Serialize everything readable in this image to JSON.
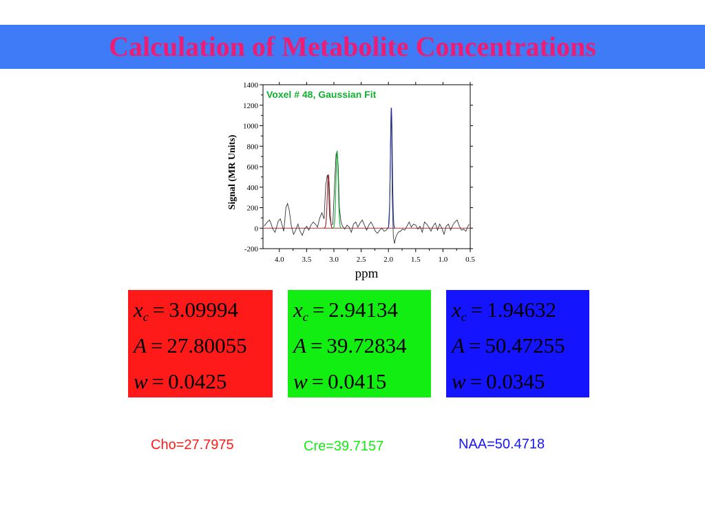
{
  "title": "Calculation of Metabolite Concentrations",
  "colors": {
    "title_bar": "#3f7af7",
    "title_text": "#ee1d74",
    "cho": "#ff1a1a",
    "cre": "#12ee12",
    "naa": "#1414ff",
    "cho_fit_line": "#a0202a",
    "cre_fit_line": "#10b030",
    "naa_fit_line": "#2030a0",
    "baseline": "#a33333",
    "spectrum": "#333333"
  },
  "chart_data": {
    "type": "line",
    "title": "Voxel # 48, Gaussian Fit",
    "xlabel": "ppm",
    "ylabel": "Signal (MR Units)",
    "xlim": [
      4.3,
      0.5
    ],
    "ylim": [
      -200,
      1400
    ],
    "x_reversed": true,
    "x_ticks": [
      4.0,
      3.5,
      3.0,
      2.5,
      2.0,
      1.5,
      1.0,
      0.5
    ],
    "x_tick_labels": [
      "4.0",
      "3.5",
      "3.0",
      "2.5",
      "2.0",
      "1.5",
      "1.0",
      "0.5"
    ],
    "y_ticks": [
      -200,
      0,
      200,
      400,
      600,
      800,
      1000,
      1200,
      1400
    ],
    "y_tick_labels": [
      "-200",
      "0",
      "200",
      "400",
      "600",
      "800",
      "1000",
      "1200",
      "1400"
    ],
    "grid": false,
    "series": [
      {
        "name": "spectrum",
        "x": [
          4.28,
          4.22,
          4.18,
          4.15,
          4.12,
          4.08,
          4.05,
          4.02,
          3.98,
          3.95,
          3.92,
          3.9,
          3.88,
          3.85,
          3.82,
          3.78,
          3.74,
          3.7,
          3.66,
          3.62,
          3.58,
          3.54,
          3.5,
          3.46,
          3.42,
          3.38,
          3.34,
          3.3,
          3.26,
          3.22,
          3.18,
          3.15,
          3.12,
          3.1,
          3.08,
          3.05,
          3.02,
          2.99,
          2.96,
          2.94,
          2.92,
          2.9,
          2.87,
          2.84,
          2.8,
          2.76,
          2.72,
          2.68,
          2.64,
          2.6,
          2.56,
          2.52,
          2.48,
          2.44,
          2.4,
          2.36,
          2.32,
          2.28,
          2.24,
          2.2,
          2.16,
          2.12,
          2.08,
          2.04,
          2.0,
          1.98,
          1.96,
          1.95,
          1.94,
          1.93,
          1.91,
          1.89,
          1.86,
          1.82,
          1.78,
          1.74,
          1.7,
          1.66,
          1.62,
          1.58,
          1.54,
          1.5,
          1.46,
          1.42,
          1.38,
          1.34,
          1.3,
          1.26,
          1.22,
          1.18,
          1.14,
          1.1,
          1.06,
          1.02,
          0.98,
          0.94,
          0.9,
          0.86,
          0.82,
          0.78,
          0.74,
          0.7,
          0.66,
          0.62,
          0.58,
          0.54,
          0.52
        ],
        "y": [
          20,
          60,
          80,
          40,
          -10,
          -40,
          10,
          70,
          90,
          30,
          -30,
          80,
          200,
          240,
          180,
          20,
          -60,
          -20,
          40,
          -30,
          -70,
          -10,
          20,
          -20,
          30,
          60,
          40,
          10,
          100,
          150,
          90,
          420,
          520,
          440,
          120,
          30,
          40,
          400,
          720,
          750,
          600,
          200,
          60,
          20,
          -10,
          30,
          10,
          -40,
          40,
          60,
          10,
          50,
          80,
          30,
          -20,
          30,
          60,
          20,
          -30,
          -50,
          -20,
          0,
          -30,
          -20,
          10,
          200,
          900,
          1170,
          900,
          300,
          -80,
          -150,
          -80,
          -40,
          -30,
          -10,
          -20,
          20,
          60,
          10,
          40,
          30,
          -10,
          20,
          -40,
          60,
          40,
          10,
          -30,
          20,
          50,
          -20,
          40,
          0,
          -60,
          20,
          40,
          -20,
          30,
          60,
          80,
          20,
          -20,
          -10,
          -30,
          20,
          40
        ]
      },
      {
        "name": "Cho fit",
        "center": 3.09994,
        "amplitude": 27.80055,
        "width": 0.0425
      },
      {
        "name": "Cre fit",
        "center": 2.94134,
        "amplitude": 39.72834,
        "width": 0.0415
      },
      {
        "name": "NAA fit",
        "center": 1.94632,
        "amplitude": 50.47255,
        "width": 0.0345
      }
    ],
    "baseline_value": 0
  },
  "fit_params": [
    {
      "name": "cho",
      "bg": "#ff1a1a",
      "text": "#000000",
      "xc_label": "x",
      "xc_sub": "c",
      "xc_value": "3.09994",
      "a_label": "A",
      "a_value": "27.80055",
      "w_label": "w",
      "w_value": "0.0425",
      "equals": "="
    },
    {
      "name": "cre",
      "bg": "#12ee12",
      "text": "#000000",
      "xc_label": "x",
      "xc_sub": "c",
      "xc_value": "2.94134",
      "a_label": "A",
      "a_value": "39.72834",
      "w_label": "w",
      "w_value": "0.0415",
      "equals": "="
    },
    {
      "name": "naa",
      "bg": "#1414ff",
      "text": "#000000",
      "xc_label": "x",
      "xc_sub": "c",
      "xc_value": "1.94632",
      "a_label": "A",
      "a_value": "50.47255",
      "w_label": "w",
      "w_value": "0.0345",
      "equals": "="
    }
  ],
  "concentrations": {
    "cho": "Cho=27.7975",
    "cre": "Cre=39.7157",
    "naa": "NAA=50.4718"
  }
}
